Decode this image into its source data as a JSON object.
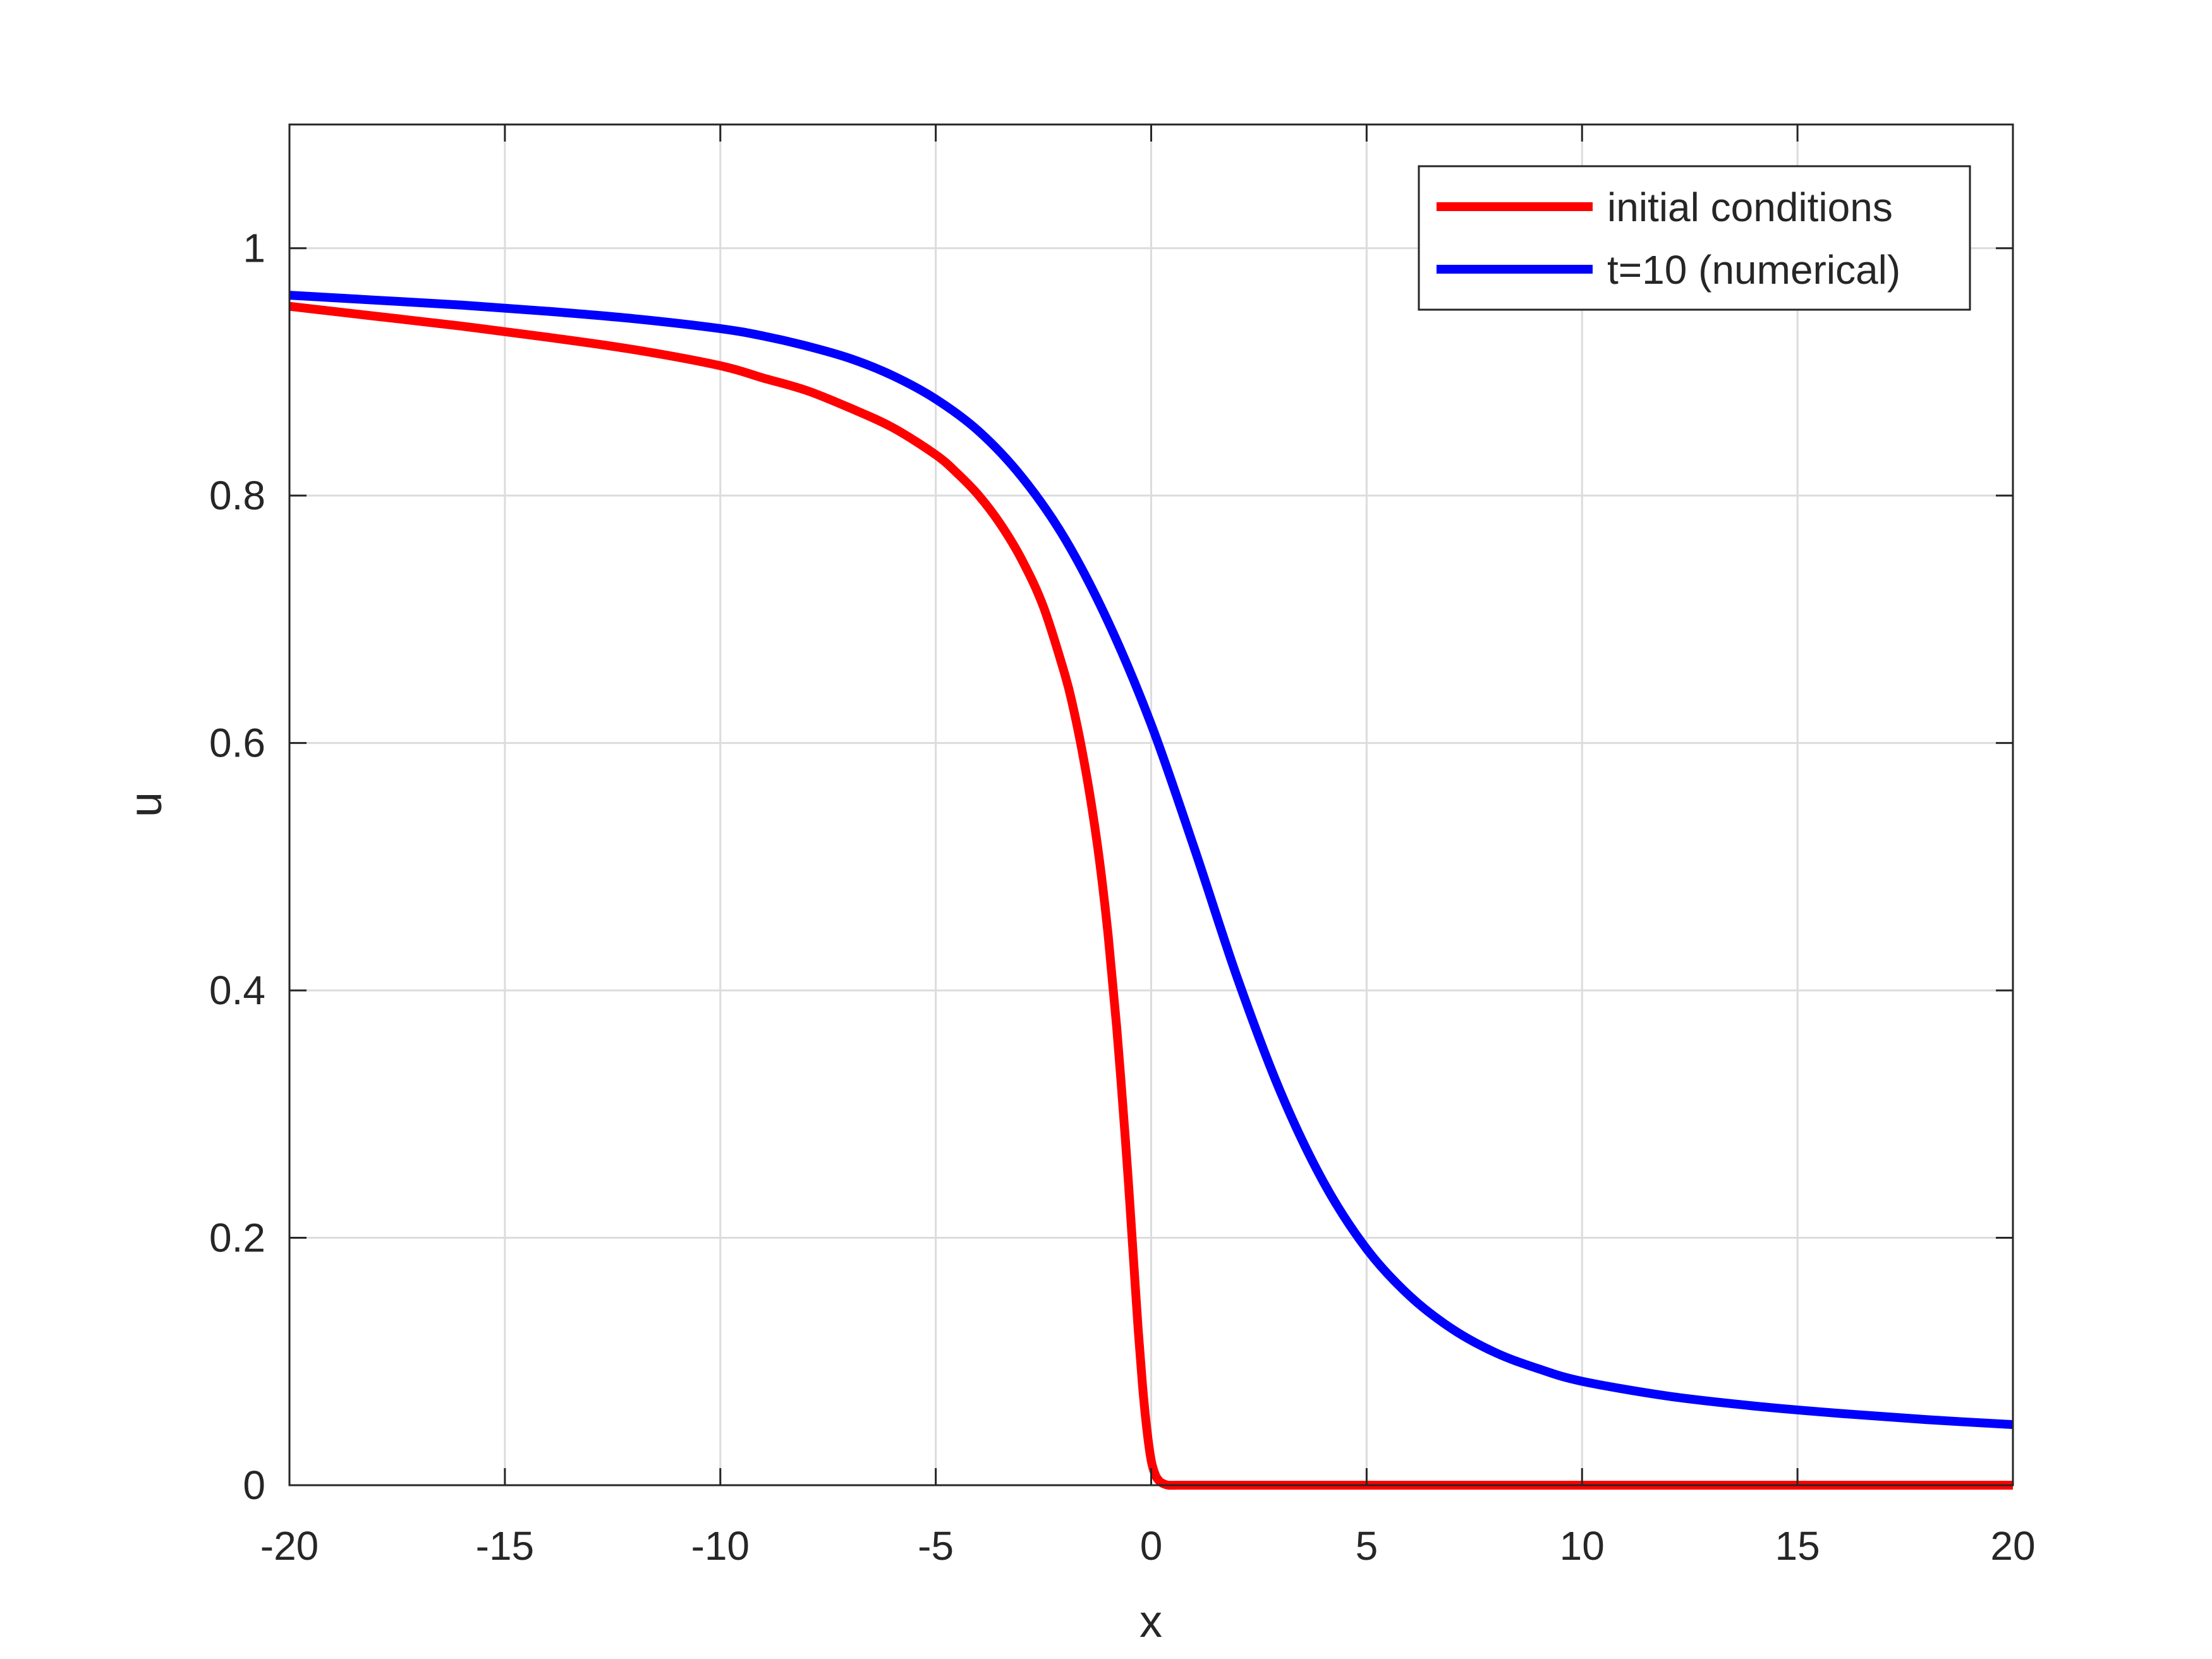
{
  "colors": {
    "initial": "#ff0000",
    "numerical": "#0000ff",
    "axis": "#262626",
    "grid": "#dcdcdc"
  },
  "chart_data": {
    "type": "line",
    "title": "",
    "xlabel": "x",
    "ylabel": "u",
    "xlim": [
      -20,
      20
    ],
    "ylim": [
      0,
      1.1
    ],
    "grid": true,
    "legend_position": "top-right",
    "xticks": [
      -20,
      -15,
      -10,
      -5,
      0,
      5,
      10,
      15,
      20
    ],
    "xtick_labels": [
      "-20",
      "-15",
      "-10",
      "-5",
      "0",
      "5",
      "10",
      "15",
      "20"
    ],
    "yticks": [
      0,
      0.2,
      0.4,
      0.6,
      0.8,
      1
    ],
    "ytick_labels": [
      "0",
      "0.2",
      "0.4",
      "0.6",
      "0.8",
      "1"
    ],
    "series": [
      {
        "name": "initial conditions",
        "color": "#ff0000",
        "x": [
          -20,
          -18,
          -16,
          -14,
          -12,
          -10,
          -9,
          -8,
          -7,
          -6,
          -5,
          -4.5,
          -4,
          -3.5,
          -3,
          -2.5,
          -2,
          -1.8,
          -1.6,
          -1.4,
          -1.2,
          -1,
          -0.8,
          -0.6,
          -0.5,
          -0.4,
          -0.3,
          -0.2,
          -0.1,
          0,
          0.1,
          0.2,
          0.3,
          0.4,
          0.6,
          0.8,
          1,
          2,
          5,
          10,
          15,
          20
        ],
        "y": [
          0.953,
          0.945,
          0.937,
          0.928,
          0.918,
          0.905,
          0.895,
          0.885,
          0.871,
          0.855,
          0.833,
          0.818,
          0.8,
          0.777,
          0.748,
          0.71,
          0.655,
          0.627,
          0.593,
          0.553,
          0.505,
          0.445,
          0.37,
          0.28,
          0.23,
          0.177,
          0.125,
          0.08,
          0.045,
          0.02,
          0.008,
          0.003,
          0.001,
          0,
          0,
          0,
          0,
          0,
          0,
          0,
          0,
          0
        ]
      },
      {
        "name": "t=10 (numerical)",
        "color": "#0000ff",
        "x": [
          -20,
          -18,
          -16,
          -14,
          -12,
          -10,
          -9,
          -8,
          -7,
          -6,
          -5,
          -4,
          -3,
          -2,
          -1,
          0,
          1,
          2,
          3,
          4,
          5,
          6,
          7,
          8,
          9,
          10,
          12,
          14,
          16,
          18,
          20
        ],
        "y": [
          0.962,
          0.958,
          0.954,
          0.949,
          0.943,
          0.935,
          0.929,
          0.921,
          0.911,
          0.897,
          0.878,
          0.852,
          0.815,
          0.765,
          0.698,
          0.615,
          0.515,
          0.41,
          0.318,
          0.245,
          0.191,
          0.153,
          0.126,
          0.107,
          0.094,
          0.084,
          0.072,
          0.064,
          0.058,
          0.053,
          0.049
        ]
      }
    ]
  }
}
